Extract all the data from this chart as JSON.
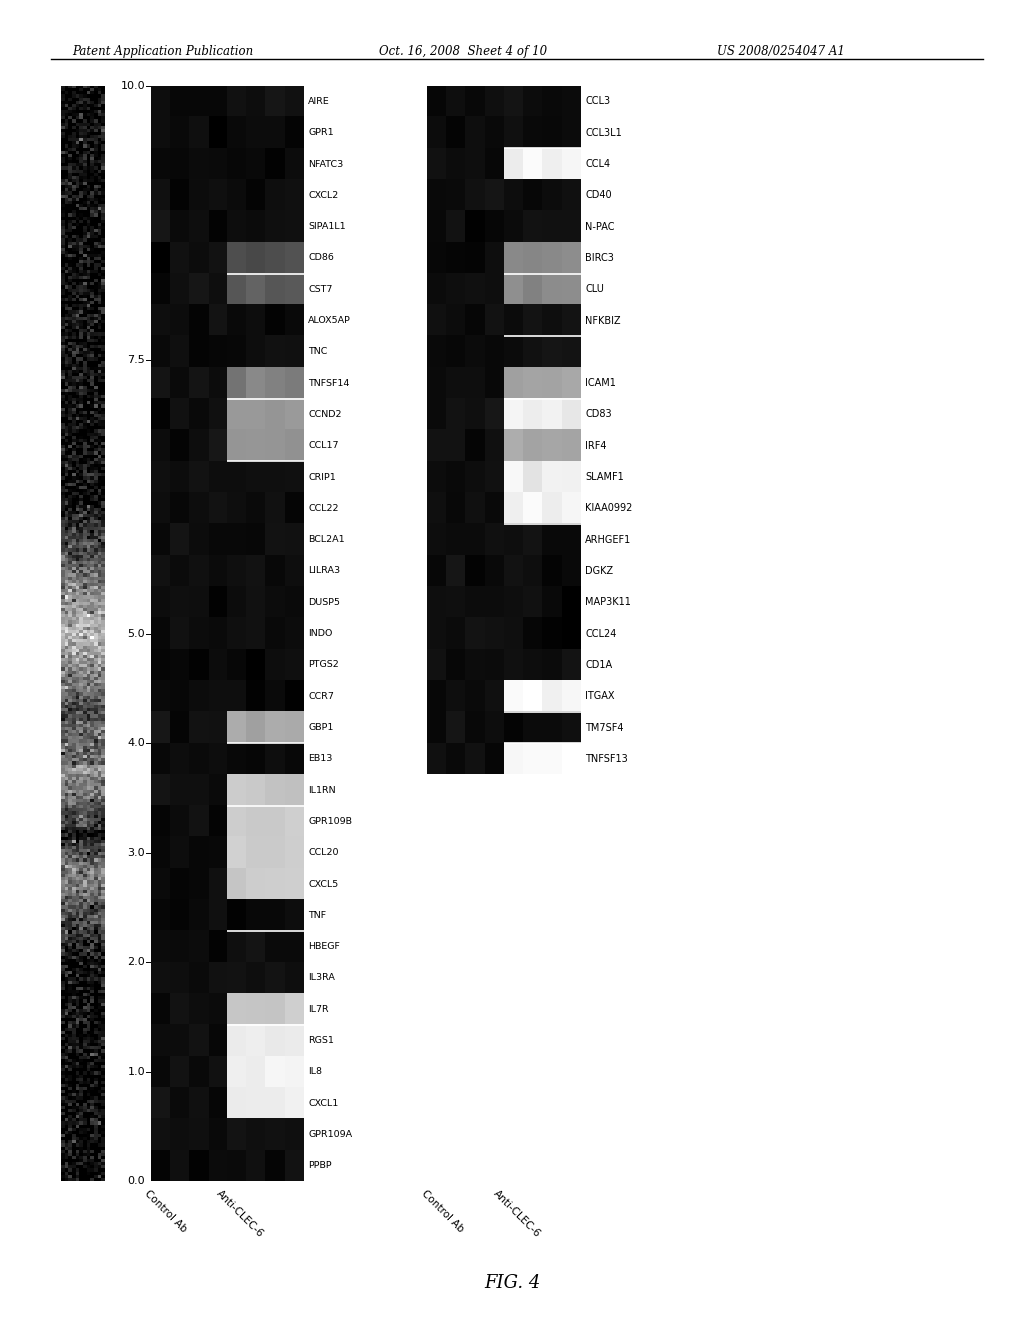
{
  "header_left": "Patent Application Publication",
  "header_center": "Oct. 16, 2008  Sheet 4 of 10",
  "header_right": "US 2008/0254047 A1",
  "figure_label": "FIG. 4",
  "ytick_vals": [
    0.0,
    1.0,
    2.0,
    3.0,
    4.0,
    5.0,
    7.5,
    10.0
  ],
  "left_genes": [
    "AIRE",
    "GPR1",
    "NFATC3",
    "CXCL2",
    "SIPA1L1",
    "CD86",
    "CST7",
    "ALOX5AP",
    "TNC",
    "TNFSF14",
    "CCND2",
    "CCL17",
    "CRIP1",
    "CCL22",
    "BCL2A1",
    "LILRA3",
    "DUSP5",
    "INDO",
    "PTGS2",
    "CCR7",
    "GBP1",
    "EB13",
    "IL1RN",
    "GPR109B",
    "CCL20",
    "CXCL5",
    "TNF",
    "HBEGF",
    "IL3RA",
    "IL7R",
    "RGS1",
    "IL8",
    "CXCL1",
    "GPR109A",
    "PPBP"
  ],
  "right_genes": [
    "CCL3",
    "CCL3L1",
    "CCL4",
    "CD40",
    "N-PAC",
    "BIRC3",
    "CLU",
    "NFKBIZ",
    "",
    "ICAM1",
    "CD83",
    "IRF4",
    "SLAMF1",
    "KIAA0992",
    "ARHGEF1",
    "DGKZ",
    "MAP3K11",
    "CCL24",
    "CD1A",
    "ITGAX",
    "TM7SF4",
    "TNFSF13"
  ],
  "left_c1": [
    9.5,
    9.5,
    9.5,
    9.5,
    9.5,
    9.5,
    9.5,
    9.5,
    9.5,
    9.5,
    9.5,
    9.5,
    9.5,
    9.5,
    9.5,
    9.5,
    9.5,
    9.5,
    9.5,
    9.5,
    9.5,
    9.5,
    9.5,
    9.5,
    9.5,
    9.5,
    9.5,
    9.5,
    9.5,
    9.5,
    9.5,
    9.5,
    9.5,
    9.5,
    9.5
  ],
  "left_c2": [
    9.5,
    9.5,
    9.5,
    9.5,
    9.5,
    7.0,
    6.5,
    9.5,
    9.5,
    5.0,
    4.0,
    4.0,
    9.5,
    9.5,
    9.5,
    9.5,
    9.5,
    9.5,
    9.5,
    9.5,
    3.5,
    9.5,
    2.0,
    2.0,
    2.0,
    2.0,
    9.5,
    9.5,
    9.5,
    2.0,
    1.0,
    0.5,
    0.8,
    9.5,
    9.5
  ],
  "left_c2_white_lines": [
    5.5,
    9.5,
    11.5,
    20.5,
    22.5,
    26.5,
    29.5
  ],
  "right_c1": [
    9.5,
    9.5,
    9.5,
    9.5,
    9.5,
    9.5,
    9.5,
    9.5,
    9.5,
    9.5,
    9.5,
    9.5,
    9.5,
    9.5,
    9.5,
    9.5,
    9.5,
    9.5,
    9.5,
    9.5,
    9.5,
    9.5
  ],
  "right_c2": [
    9.5,
    9.5,
    0.5,
    9.5,
    9.5,
    4.5,
    4.5,
    9.5,
    9.5,
    3.5,
    0.5,
    3.5,
    0.5,
    0.5,
    9.5,
    9.5,
    9.5,
    9.5,
    9.5,
    0.3,
    9.5,
    0.3
  ],
  "right_c2_white_lines": [
    1.5,
    5.5,
    7.5,
    9.5,
    13.5,
    19.5,
    20.5
  ],
  "colorbar_noisy": true,
  "xlabel_left1": "Control Ab",
  "xlabel_left2": "Anti-CLEC-6",
  "xlabel_right1": "Control Ab",
  "xlabel_right2": "Anti-CLEC-6"
}
